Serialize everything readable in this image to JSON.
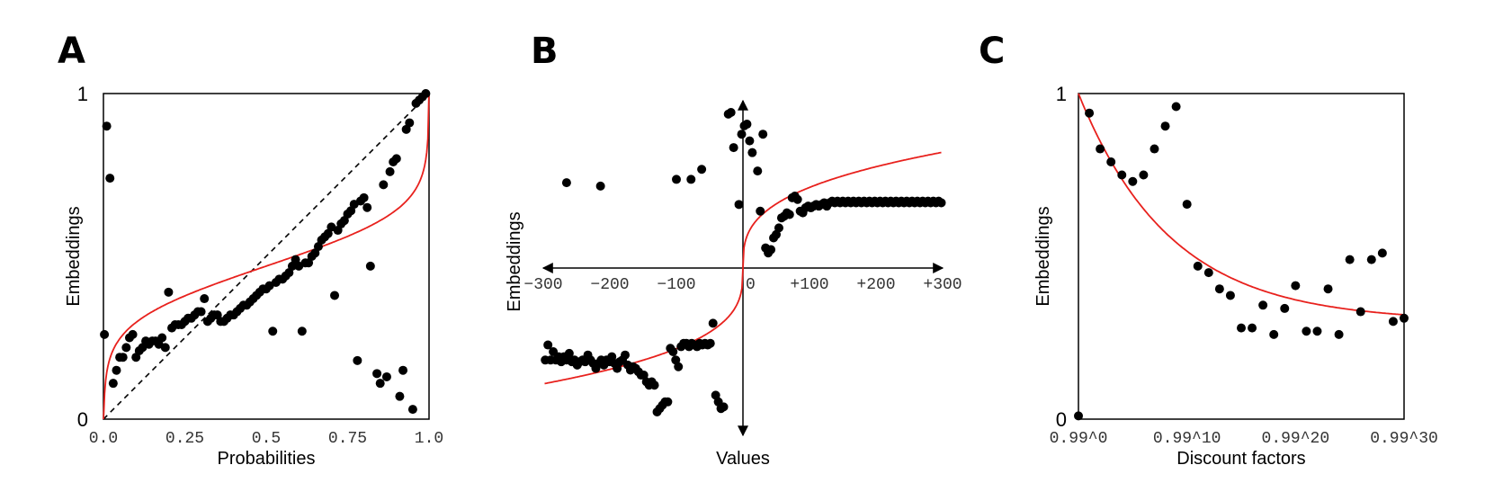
{
  "colors": {
    "dots": "#000000",
    "fit": "#e8211d",
    "frame": "#000000",
    "diagonal": "#000000"
  },
  "chart_data": [
    {
      "type": "scatter",
      "panel": "A",
      "xlabel": "Probabilities",
      "ylabel": "Embeddings",
      "xticks": [
        "0.0",
        "0.25",
        "0.5",
        "0.75",
        "1.0"
      ],
      "xtick_values": [
        0,
        0.25,
        0.5,
        0.75,
        1.0
      ],
      "ytick_labels": [
        "0",
        "1"
      ],
      "xlim": [
        0,
        1
      ],
      "ylim": [
        0,
        1
      ],
      "reference_line": "diagonal y = x (dashed)",
      "fit": "red curve",
      "points": [
        [
          0.003,
          0.26
        ],
        [
          0.01,
          0.9
        ],
        [
          0.02,
          0.74
        ],
        [
          0.03,
          0.11
        ],
        [
          0.04,
          0.15
        ],
        [
          0.05,
          0.19
        ],
        [
          0.06,
          0.19
        ],
        [
          0.07,
          0.22
        ],
        [
          0.08,
          0.25
        ],
        [
          0.09,
          0.26
        ],
        [
          0.1,
          0.19
        ],
        [
          0.11,
          0.21
        ],
        [
          0.12,
          0.22
        ],
        [
          0.13,
          0.24
        ],
        [
          0.14,
          0.23
        ],
        [
          0.15,
          0.24
        ],
        [
          0.16,
          0.24
        ],
        [
          0.17,
          0.23
        ],
        [
          0.18,
          0.25
        ],
        [
          0.19,
          0.22
        ],
        [
          0.2,
          0.39
        ],
        [
          0.21,
          0.28
        ],
        [
          0.22,
          0.29
        ],
        [
          0.23,
          0.29
        ],
        [
          0.24,
          0.29
        ],
        [
          0.25,
          0.3
        ],
        [
          0.26,
          0.31
        ],
        [
          0.27,
          0.31
        ],
        [
          0.28,
          0.32
        ],
        [
          0.29,
          0.33
        ],
        [
          0.3,
          0.33
        ],
        [
          0.31,
          0.37
        ],
        [
          0.32,
          0.3
        ],
        [
          0.33,
          0.31
        ],
        [
          0.34,
          0.32
        ],
        [
          0.35,
          0.32
        ],
        [
          0.36,
          0.3
        ],
        [
          0.37,
          0.3
        ],
        [
          0.38,
          0.31
        ],
        [
          0.39,
          0.32
        ],
        [
          0.4,
          0.32
        ],
        [
          0.41,
          0.33
        ],
        [
          0.42,
          0.34
        ],
        [
          0.43,
          0.35
        ],
        [
          0.44,
          0.35
        ],
        [
          0.45,
          0.36
        ],
        [
          0.46,
          0.37
        ],
        [
          0.47,
          0.38
        ],
        [
          0.48,
          0.39
        ],
        [
          0.49,
          0.4
        ],
        [
          0.5,
          0.4
        ],
        [
          0.51,
          0.41
        ],
        [
          0.52,
          0.27
        ],
        [
          0.53,
          0.42
        ],
        [
          0.54,
          0.43
        ],
        [
          0.55,
          0.43
        ],
        [
          0.56,
          0.44
        ],
        [
          0.57,
          0.45
        ],
        [
          0.58,
          0.47
        ],
        [
          0.59,
          0.49
        ],
        [
          0.6,
          0.47
        ],
        [
          0.61,
          0.27
        ],
        [
          0.62,
          0.48
        ],
        [
          0.63,
          0.48
        ],
        [
          0.64,
          0.5
        ],
        [
          0.65,
          0.51
        ],
        [
          0.66,
          0.53
        ],
        [
          0.67,
          0.55
        ],
        [
          0.68,
          0.56
        ],
        [
          0.69,
          0.57
        ],
        [
          0.7,
          0.59
        ],
        [
          0.71,
          0.38
        ],
        [
          0.72,
          0.58
        ],
        [
          0.73,
          0.6
        ],
        [
          0.74,
          0.61
        ],
        [
          0.75,
          0.63
        ],
        [
          0.76,
          0.64
        ],
        [
          0.77,
          0.66
        ],
        [
          0.78,
          0.18
        ],
        [
          0.79,
          0.67
        ],
        [
          0.8,
          0.68
        ],
        [
          0.81,
          0.65
        ],
        [
          0.82,
          0.47
        ],
        [
          0.84,
          0.14
        ],
        [
          0.85,
          0.11
        ],
        [
          0.86,
          0.72
        ],
        [
          0.87,
          0.13
        ],
        [
          0.88,
          0.76
        ],
        [
          0.89,
          0.79
        ],
        [
          0.9,
          0.8
        ],
        [
          0.91,
          0.07
        ],
        [
          0.92,
          0.15
        ],
        [
          0.93,
          0.89
        ],
        [
          0.94,
          0.91
        ],
        [
          0.95,
          0.03
        ],
        [
          0.96,
          0.97
        ],
        [
          0.97,
          0.98
        ],
        [
          0.98,
          0.99
        ],
        [
          0.99,
          1.0
        ]
      ]
    },
    {
      "type": "scatter",
      "panel": "B",
      "xlabel": "Values",
      "ylabel": "Embeddings",
      "xticks": [
        "−300",
        "−200",
        "−100",
        "0",
        "+100",
        "+200",
        "+300"
      ],
      "xtick_values": [
        -300,
        -200,
        -100,
        0,
        100,
        200,
        300
      ],
      "xlim": [
        -300,
        300
      ],
      "ylim": [
        -1,
        1
      ],
      "fit": "red curve",
      "points": [
        [
          -297,
          -0.55
        ],
        [
          -293,
          -0.46
        ],
        [
          -289,
          -0.55
        ],
        [
          -285,
          -0.5
        ],
        [
          -281,
          -0.55
        ],
        [
          -277,
          -0.53
        ],
        [
          -273,
          -0.56
        ],
        [
          -269,
          -0.53
        ],
        [
          -265,
          -0.55
        ],
        [
          -261,
          -0.51
        ],
        [
          -257,
          -0.56
        ],
        [
          -253,
          -0.55
        ],
        [
          -249,
          -0.58
        ],
        [
          -245,
          -0.56
        ],
        [
          -241,
          -0.55
        ],
        [
          -237,
          -0.56
        ],
        [
          -233,
          -0.52
        ],
        [
          -229,
          -0.55
        ],
        [
          -225,
          -0.57
        ],
        [
          -221,
          -0.6
        ],
        [
          -217,
          -0.57
        ],
        [
          -213,
          -0.55
        ],
        [
          -209,
          -0.58
        ],
        [
          -205,
          -0.55
        ],
        [
          -201,
          -0.56
        ],
        [
          -197,
          -0.53
        ],
        [
          -193,
          -0.57
        ],
        [
          -189,
          -0.6
        ],
        [
          -185,
          -0.56
        ],
        [
          -181,
          -0.55
        ],
        [
          -177,
          -0.52
        ],
        [
          -173,
          -0.58
        ],
        [
          -169,
          -0.61
        ],
        [
          -165,
          -0.59
        ],
        [
          -161,
          -0.6
        ],
        [
          -157,
          -0.62
        ],
        [
          -153,
          -0.64
        ],
        [
          -149,
          -0.64
        ],
        [
          -145,
          -0.68
        ],
        [
          -141,
          -0.7
        ],
        [
          -137,
          -0.68
        ],
        [
          -133,
          -0.7
        ],
        [
          -129,
          -0.86
        ],
        [
          -125,
          -0.84
        ],
        [
          -121,
          -0.82
        ],
        [
          -117,
          -0.8
        ],
        [
          -113,
          -0.8
        ],
        [
          -109,
          -0.48
        ],
        [
          -105,
          -0.5
        ],
        [
          -101,
          -0.55
        ],
        [
          -97,
          -0.59
        ],
        [
          -93,
          -0.47
        ],
        [
          -89,
          -0.45
        ],
        [
          -85,
          -0.45
        ],
        [
          -81,
          -0.47
        ],
        [
          -77,
          -0.45
        ],
        [
          -73,
          -0.46
        ],
        [
          -69,
          -0.47
        ],
        [
          -65,
          -0.45
        ],
        [
          -61,
          -0.46
        ],
        [
          -57,
          -0.45
        ],
        [
          -53,
          -0.46
        ],
        [
          -49,
          -0.45
        ],
        [
          -45,
          -0.33
        ],
        [
          -41,
          -0.76
        ],
        [
          -37,
          -0.8
        ],
        [
          -33,
          -0.84
        ],
        [
          -29,
          -0.83
        ],
        [
          -265,
          0.51
        ],
        [
          -214,
          0.49
        ],
        [
          -100,
          0.53
        ],
        [
          -78,
          0.53
        ],
        [
          -62,
          0.59
        ],
        [
          -22,
          0.92
        ],
        [
          -18,
          0.93
        ],
        [
          -14,
          0.72
        ],
        [
          -6,
          0.38
        ],
        [
          -2,
          0.8
        ],
        [
          2,
          0.85
        ],
        [
          6,
          0.86
        ],
        [
          10,
          0.76
        ],
        [
          14,
          0.69
        ],
        [
          22,
          0.58
        ],
        [
          26,
          0.34
        ],
        [
          30,
          0.8
        ],
        [
          34,
          0.12
        ],
        [
          38,
          0.09
        ],
        [
          42,
          0.11
        ],
        [
          46,
          0.18
        ],
        [
          50,
          0.2
        ],
        [
          54,
          0.24
        ],
        [
          58,
          0.3
        ],
        [
          62,
          0.31
        ],
        [
          66,
          0.33
        ],
        [
          70,
          0.32
        ],
        [
          74,
          0.42
        ],
        [
          78,
          0.43
        ],
        [
          82,
          0.41
        ],
        [
          86,
          0.34
        ],
        [
          90,
          0.33
        ],
        [
          94,
          0.36
        ],
        [
          98,
          0.37
        ],
        [
          102,
          0.36
        ],
        [
          106,
          0.37
        ],
        [
          110,
          0.38
        ],
        [
          114,
          0.37
        ],
        [
          118,
          0.38
        ],
        [
          122,
          0.39
        ],
        [
          126,
          0.37
        ],
        [
          130,
          0.39
        ],
        [
          134,
          0.4
        ],
        [
          138,
          0.39
        ],
        [
          142,
          0.4
        ],
        [
          146,
          0.39
        ],
        [
          150,
          0.4
        ],
        [
          154,
          0.39
        ],
        [
          158,
          0.4
        ],
        [
          162,
          0.39
        ],
        [
          166,
          0.4
        ],
        [
          170,
          0.39
        ],
        [
          174,
          0.4
        ],
        [
          178,
          0.39
        ],
        [
          182,
          0.4
        ],
        [
          186,
          0.39
        ],
        [
          190,
          0.4
        ],
        [
          194,
          0.39
        ],
        [
          198,
          0.4
        ],
        [
          202,
          0.39
        ],
        [
          206,
          0.4
        ],
        [
          210,
          0.39
        ],
        [
          214,
          0.4
        ],
        [
          218,
          0.39
        ],
        [
          222,
          0.4
        ],
        [
          226,
          0.39
        ],
        [
          230,
          0.4
        ],
        [
          234,
          0.39
        ],
        [
          238,
          0.4
        ],
        [
          242,
          0.39
        ],
        [
          246,
          0.4
        ],
        [
          250,
          0.39
        ],
        [
          254,
          0.4
        ],
        [
          258,
          0.39
        ],
        [
          262,
          0.4
        ],
        [
          266,
          0.39
        ],
        [
          270,
          0.4
        ],
        [
          274,
          0.39
        ],
        [
          278,
          0.4
        ],
        [
          282,
          0.39
        ],
        [
          286,
          0.4
        ],
        [
          290,
          0.39
        ],
        [
          294,
          0.4
        ],
        [
          298,
          0.39
        ]
      ]
    },
    {
      "type": "scatter",
      "panel": "C",
      "xlabel": "Discount factors",
      "ylabel": "Embeddings",
      "xticks": [
        "0.99^0",
        "0.99^10",
        "0.99^20",
        "0.99^30"
      ],
      "xtick_values": [
        0,
        10,
        20,
        30
      ],
      "ytick_labels": [
        "0",
        "1"
      ],
      "xlim": [
        0,
        30
      ],
      "ylim": [
        0,
        1
      ],
      "fit": "red curve",
      "points": [
        [
          0,
          0.01
        ],
        [
          1,
          0.94
        ],
        [
          2,
          0.83
        ],
        [
          3,
          0.79
        ],
        [
          4,
          0.75
        ],
        [
          5,
          0.73
        ],
        [
          6,
          0.75
        ],
        [
          7,
          0.83
        ],
        [
          8,
          0.9
        ],
        [
          9,
          0.96
        ],
        [
          10,
          0.66
        ],
        [
          11,
          0.47
        ],
        [
          12,
          0.45
        ],
        [
          13,
          0.4
        ],
        [
          14,
          0.38
        ],
        [
          15,
          0.28
        ],
        [
          16,
          0.28
        ],
        [
          17,
          0.35
        ],
        [
          18,
          0.26
        ],
        [
          19,
          0.34
        ],
        [
          20,
          0.41
        ],
        [
          21,
          0.27
        ],
        [
          22,
          0.27
        ],
        [
          23,
          0.4
        ],
        [
          24,
          0.26
        ],
        [
          25,
          0.49
        ],
        [
          26,
          0.33
        ],
        [
          27,
          0.49
        ],
        [
          28,
          0.51
        ],
        [
          29,
          0.3
        ],
        [
          30,
          0.31
        ]
      ]
    }
  ]
}
